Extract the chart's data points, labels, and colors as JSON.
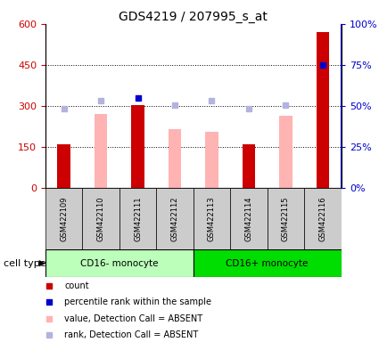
{
  "title": "GDS4219 / 207995_s_at",
  "samples": [
    "GSM422109",
    "GSM422110",
    "GSM422111",
    "GSM422112",
    "GSM422113",
    "GSM422114",
    "GSM422115",
    "GSM422116"
  ],
  "count_values": [
    160,
    null,
    305,
    null,
    null,
    160,
    null,
    570
  ],
  "value_absent": [
    null,
    270,
    null,
    215,
    205,
    null,
    265,
    null
  ],
  "percentile_values": [
    null,
    null,
    330,
    null,
    null,
    null,
    null,
    450
  ],
  "rank_absent": [
    290,
    320,
    null,
    305,
    320,
    290,
    305,
    null
  ],
  "ylim_left": [
    0,
    600
  ],
  "ylim_right": [
    0,
    100
  ],
  "yticks_left": [
    0,
    150,
    300,
    450,
    600
  ],
  "ytick_labels_left": [
    "0",
    "150",
    "300",
    "450",
    "600"
  ],
  "yticks_right": [
    0,
    25,
    50,
    75,
    100
  ],
  "ytick_labels_right": [
    "0%",
    "25%",
    "50%",
    "75%",
    "100%"
  ],
  "group1_label": "CD16- monocyte",
  "group2_label": "CD16+ monocyte",
  "cell_type_label": "cell type",
  "legend_items": [
    {
      "label": "count",
      "color": "#cc0000"
    },
    {
      "label": "percentile rank within the sample",
      "color": "#0000cc"
    },
    {
      "label": "value, Detection Call = ABSENT",
      "color": "#ffb3b3"
    },
    {
      "label": "rank, Detection Call = ABSENT",
      "color": "#b3b3dd"
    }
  ],
  "bar_color_present": "#cc0000",
  "bar_color_absent_value": "#ffb3b3",
  "dot_color_percentile": "#0000cc",
  "dot_color_rank_absent": "#b3b3dd",
  "group1_bg": "#bbffbb",
  "group2_bg": "#00dd00",
  "sample_bg": "#cccccc",
  "left_axis_color": "#cc0000",
  "right_axis_color": "#0000cc"
}
